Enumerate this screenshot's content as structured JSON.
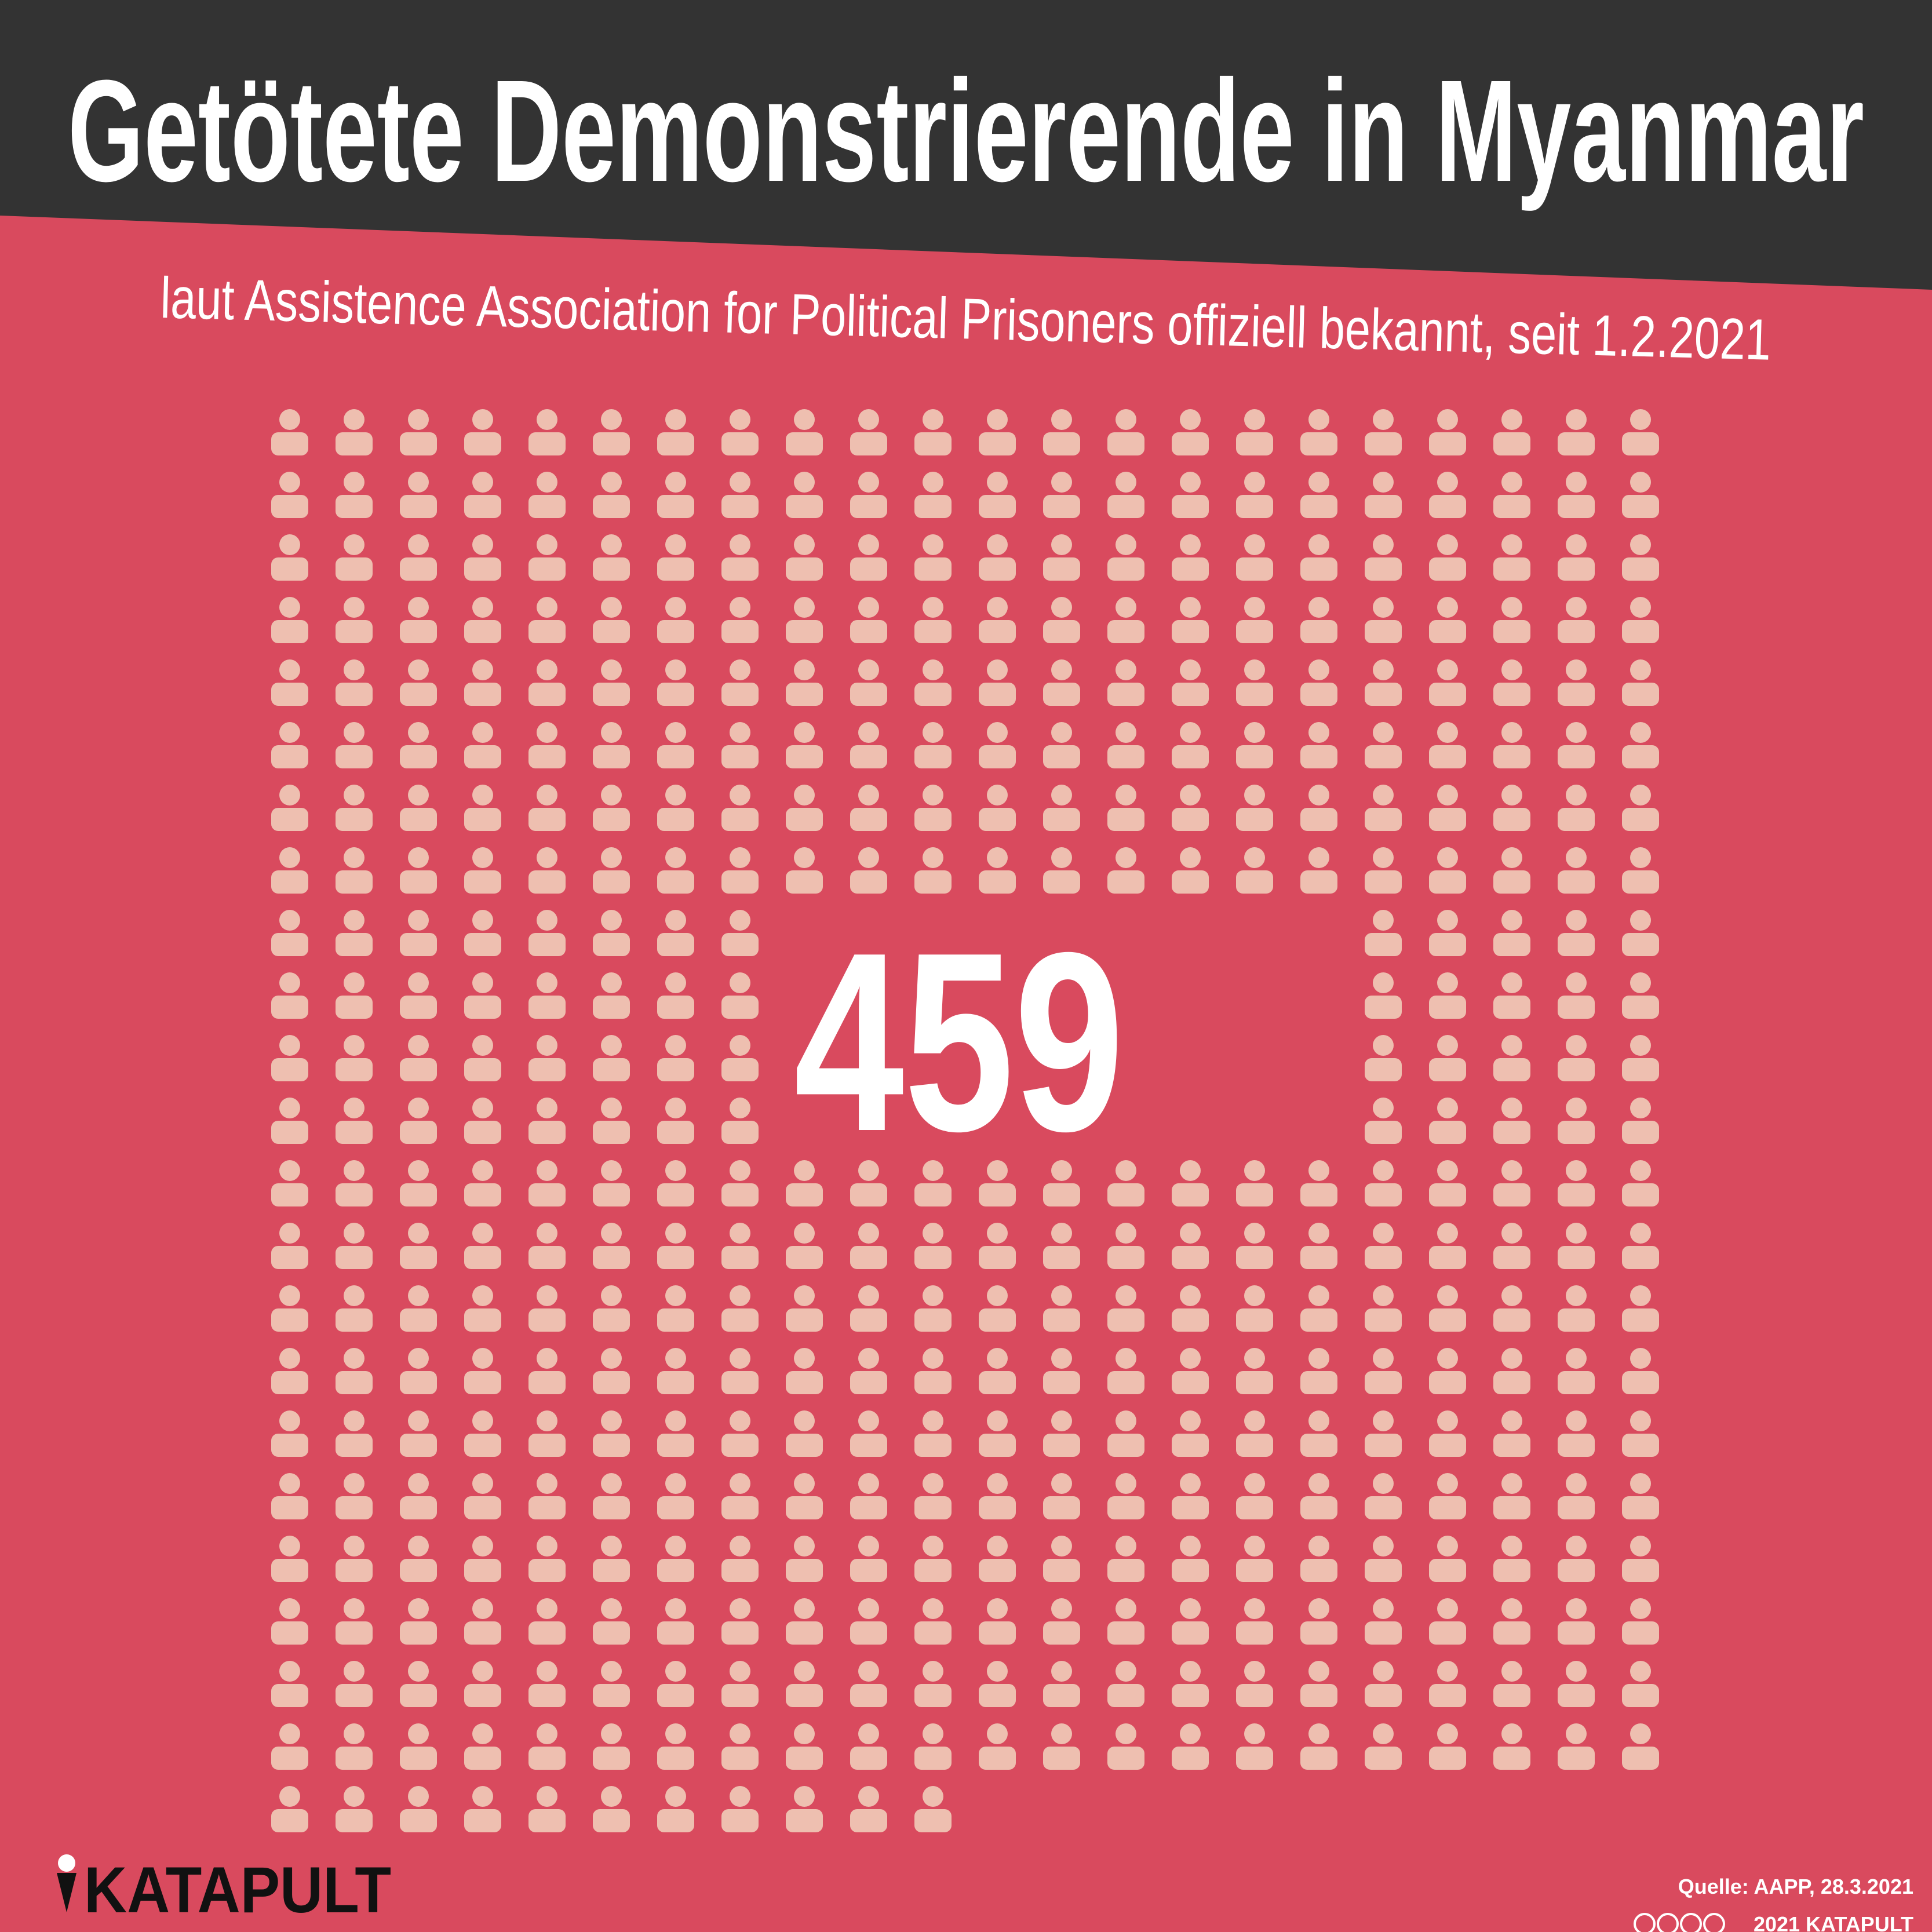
{
  "chart_data": {
    "type": "pictogram",
    "title": "Getötete Demonstrierende in Myanmar",
    "subtitle": "laut Assistence Association for Political Prisoners offiziell bekannt, seit 1.2.2021",
    "value": 459,
    "color": "#eebfb0"
  },
  "footer": {
    "logo": "KATAPULT",
    "source": "Quelle: AAPP, 28.3.2021",
    "copyright": "2021 KATAPULT"
  }
}
